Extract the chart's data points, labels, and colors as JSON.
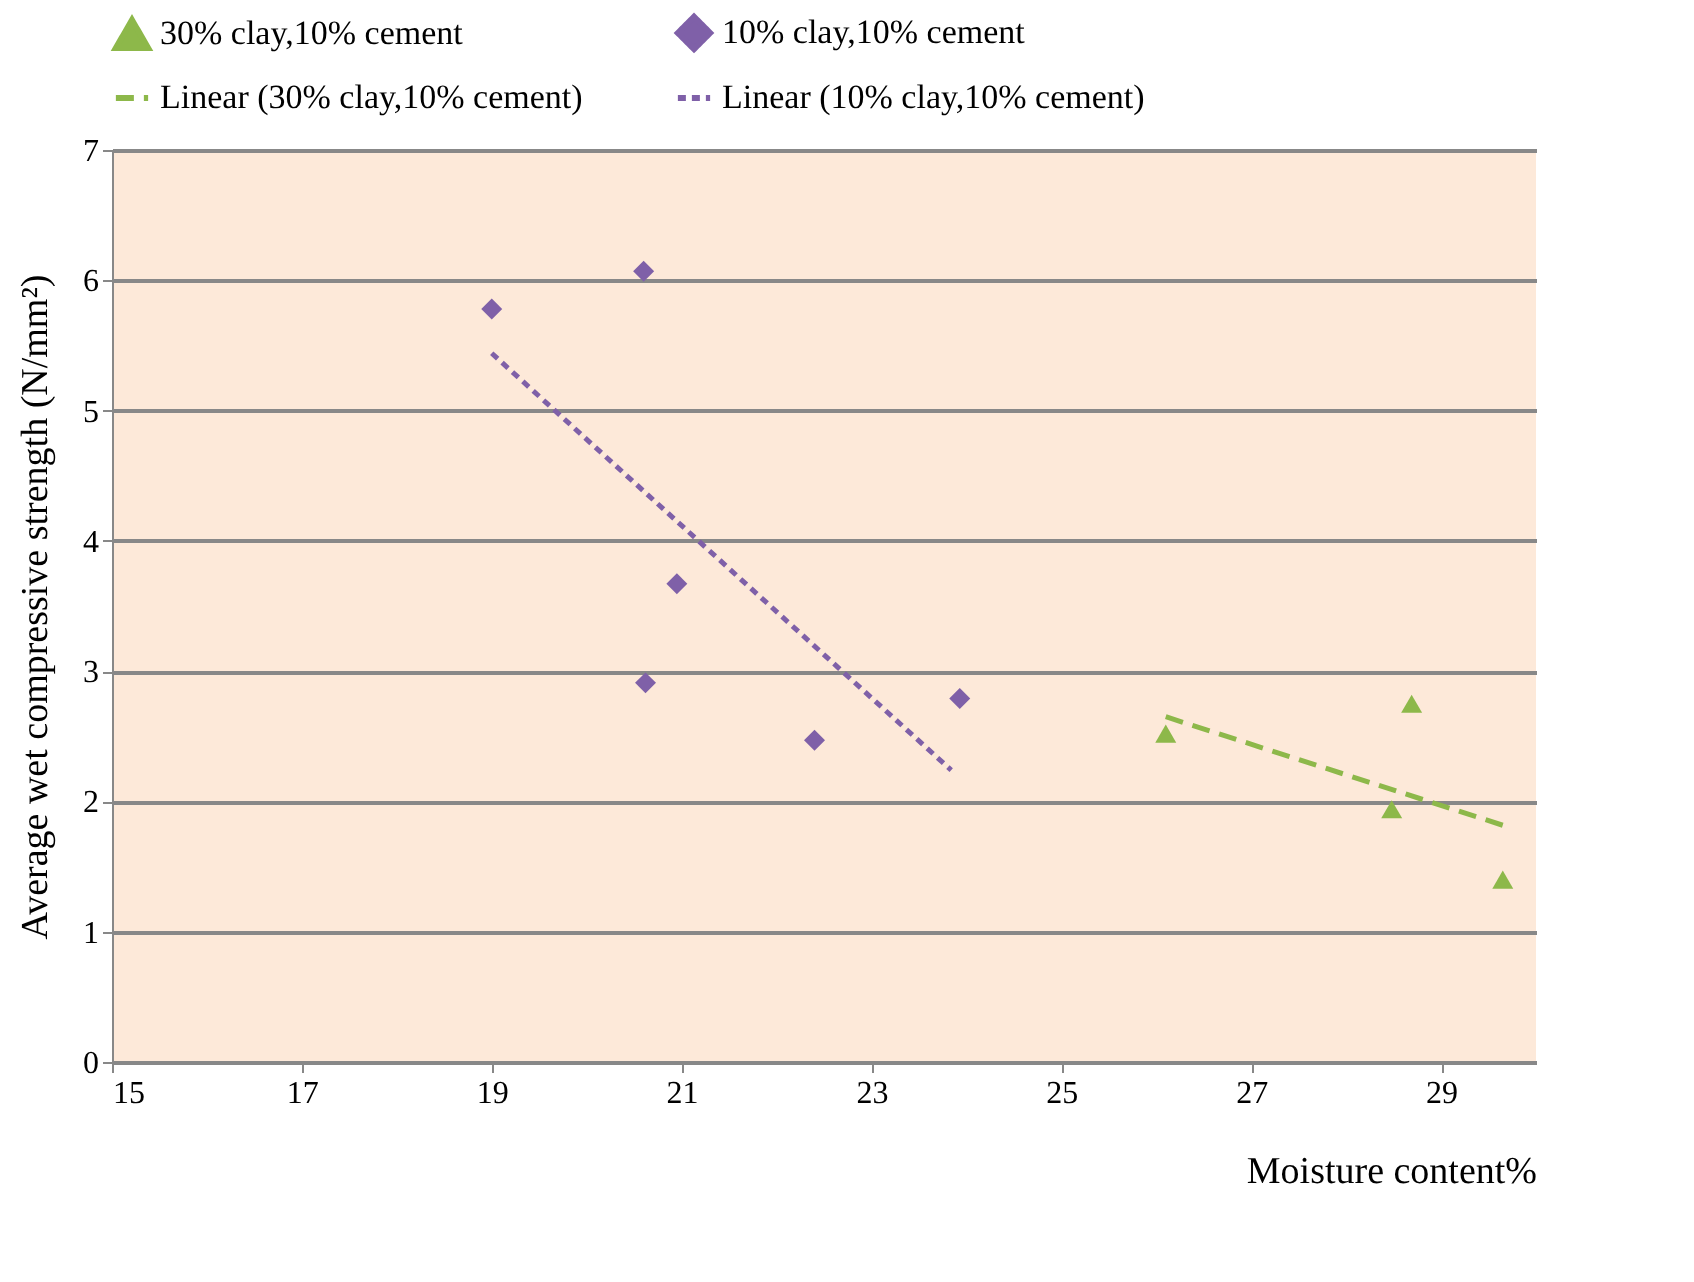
{
  "chart_data": {
    "type": "scatter",
    "xlabel": "Moisture content%",
    "ylabel": "Average wet compressive strength (N/mm²)",
    "xlim": [
      15,
      30
    ],
    "xticks": [
      15,
      17,
      19,
      21,
      23,
      25,
      27,
      29
    ],
    "ylim": [
      0,
      7
    ],
    "yticks": [
      0,
      1,
      2,
      3,
      4,
      5,
      6,
      7
    ],
    "grid": "y",
    "legend": "top",
    "series": [
      {
        "name": "30% clay,10% cement",
        "marker": "triangle",
        "color": "#8db84a",
        "x": [
          26.1,
          28.48,
          28.69,
          29.65
        ],
        "values": [
          2.52,
          1.94,
          2.75,
          1.4
        ]
      },
      {
        "name": "10% clay,10% cement",
        "marker": "diamond",
        "color": "#7f60a8",
        "x": [
          19.0,
          20.6,
          20.95,
          20.62,
          22.4,
          23.93
        ],
        "values": [
          5.78,
          6.07,
          3.67,
          2.91,
          2.47,
          2.79
        ]
      },
      {
        "name": "Linear (30% clay,10% cement)",
        "type": "line",
        "line_style": "dashed",
        "color": "#8db84a",
        "x": [
          26.1,
          29.68
        ],
        "values": [
          2.65,
          1.81
        ]
      },
      {
        "name": "Linear (10% clay,10% cement)",
        "type": "line",
        "line_style": "dotted",
        "color": "#7f60a8",
        "x": [
          19.0,
          23.84
        ],
        "values": [
          5.44,
          2.24
        ]
      }
    ]
  }
}
